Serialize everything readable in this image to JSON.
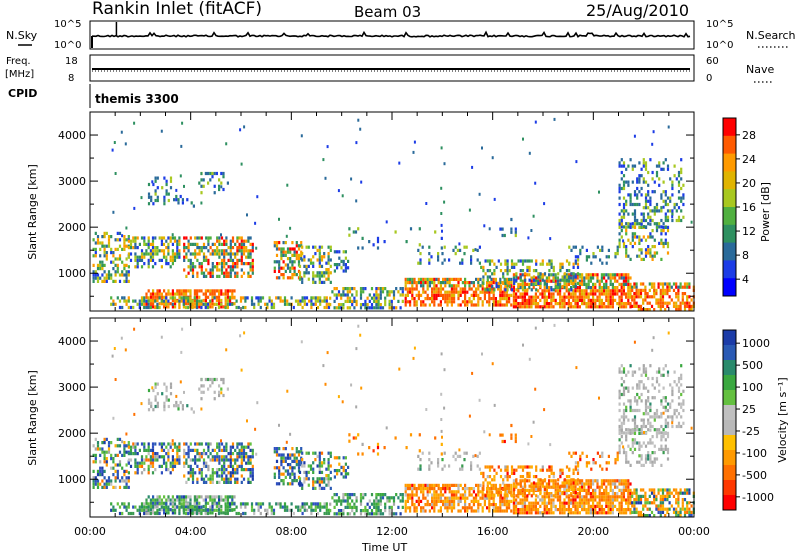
{
  "header": {
    "station": "Rankin Inlet (fitACF)",
    "beam": "Beam 03",
    "date": "25/Aug/2010"
  },
  "status_panels": {
    "nsky_label": "N.Sky",
    "nsky_ticks": [
      "10^5",
      "10^0"
    ],
    "nsearch_label": "N.Search",
    "nsearch_ticks": [
      "10^5",
      "10^0"
    ],
    "freq_label_1": "Freq.",
    "freq_label_2": "[MHz]",
    "freq_ticks": [
      "18",
      "8"
    ],
    "nave_label": "Nave",
    "nave_ticks": [
      "60",
      "0"
    ],
    "cpid_label": "CPID",
    "cpid_value": "themis 3300"
  },
  "chart_data": [
    {
      "type": "heatmap",
      "panel": "power",
      "ylabel": "Slant Range [km]",
      "ylim": [
        180,
        4500
      ],
      "yticks": [
        "1000",
        "2000",
        "3000",
        "4000"
      ],
      "x_range_hours": [
        0,
        24
      ],
      "colorbar_label": "Power [dB]",
      "colorbar_ticks": [
        "28",
        "24",
        "20",
        "16",
        "12",
        "8",
        "4"
      ],
      "colorbar_colors": [
        "#ff0000",
        "#ff5a00",
        "#ff9a00",
        "#e0b400",
        "#a8c820",
        "#50b040",
        "#2e9060",
        "#2a6a9a",
        "#1c3ce6",
        "#0000ff"
      ],
      "colorbar_range": [
        0,
        30
      ]
    },
    {
      "type": "heatmap",
      "panel": "velocity",
      "ylabel": "Slant Range [km]",
      "ylim": [
        180,
        4500
      ],
      "yticks": [
        "1000",
        "2000",
        "3000",
        "4000"
      ],
      "x_range_hours": [
        0,
        24
      ],
      "xticks": [
        "00:00",
        "04:00",
        "08:00",
        "12:00",
        "16:00",
        "20:00",
        "00:00"
      ],
      "xlabel": "Time UT",
      "colorbar_label": "Velocity [m s⁻¹]",
      "colorbar_ticks": [
        "1000",
        "500",
        "100",
        "25",
        "-25",
        "-100",
        "-500",
        "-1000"
      ],
      "colorbar_colors": [
        "#1c3ca8",
        "#2a5ab4",
        "#2a8a6c",
        "#3aa840",
        "#64c040",
        "#c0c0c0",
        "#b8b8b8",
        "#ffc000",
        "#ff9a00",
        "#ff7000",
        "#ff3800",
        "#ff0000"
      ]
    }
  ],
  "colors": {
    "ink": "#000000",
    "ground": "#7a7a7a"
  }
}
